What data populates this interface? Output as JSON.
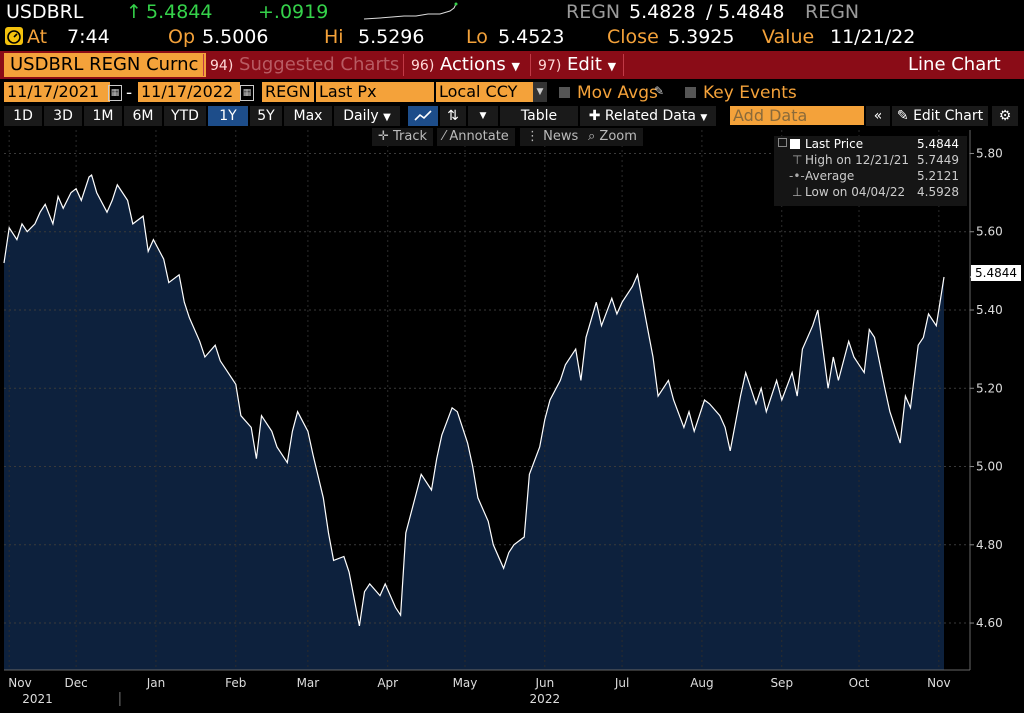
{
  "quote": {
    "ticker": "USDBRL",
    "arrow": "↑",
    "last": "5.4844",
    "change": "+.0919",
    "source_left": "REGN",
    "bid": "5.4828",
    "slash": "/",
    "ask": "5.4848",
    "source_right": "REGN",
    "at_label": "At",
    "at_time": "7:44",
    "open_label": "Op",
    "open": "5.5006",
    "high_label": "Hi",
    "high": "5.5296",
    "low_label": "Lo",
    "low": "5.4523",
    "close_label": "Close",
    "close": "5.3925",
    "value_label": "Value",
    "value_date": "11/21/22"
  },
  "menubar": {
    "security": "USDBRL REGN Curnc",
    "suggested_num": "94)",
    "suggested": "Suggested Charts",
    "actions_num": "96)",
    "actions": "Actions",
    "edit_num": "97)",
    "edit": "Edit",
    "chart_type": "Line Chart"
  },
  "controls": {
    "start_date": "11/17/2021",
    "dash": "-",
    "end_date": "11/17/2022",
    "source": "REGN",
    "field": "Last Px",
    "currency": "Local CCY",
    "mov_avgs": "Mov Avgs",
    "key_events": "Key Events",
    "ranges": [
      "1D",
      "3D",
      "1M",
      "6M",
      "YTD",
      "1Y",
      "5Y",
      "Max"
    ],
    "selected_range": "1Y",
    "frequency": "Daily",
    "table": "Table",
    "related_data": "Related Data",
    "add_data_placeholder": "Add Data",
    "edit_chart": "Edit Chart"
  },
  "tools": {
    "track": "Track",
    "annotate": "Annotate",
    "news": "News",
    "zoom": "Zoom"
  },
  "legend": {
    "last_label": "Last Price",
    "last_value": "5.4844",
    "high_label": "High on 12/21/21",
    "high_value": "5.7449",
    "avg_label": "Average",
    "avg_value": "5.2121",
    "low_label": "Low on 04/04/22",
    "low_value": "4.5928"
  },
  "colors": {
    "accent_orange": "#f4a23a",
    "menu_red": "#8a0c17",
    "up_green": "#35d24a",
    "area_fill": "#0d213d",
    "line": "#ffffff"
  },
  "chart_data": {
    "type": "area",
    "title": "",
    "xlabel": "",
    "ylabel": "",
    "ylim": [
      4.48,
      5.86
    ],
    "y_ticks": [
      "5.80",
      "5.60",
      "5.40",
      "5.20",
      "5.00",
      "4.80",
      "4.60"
    ],
    "y_tick_values": [
      5.8,
      5.6,
      5.4,
      5.2,
      5.0,
      4.8,
      4.6
    ],
    "x_ticks": [
      "Nov",
      "Dec",
      "Jan",
      "Feb",
      "Mar",
      "Apr",
      "May",
      "Jun",
      "Jul",
      "Aug",
      "Sep",
      "Oct",
      "Nov"
    ],
    "x_tick_dates": [
      "2021-11-19",
      "2021-12-15",
      "2022-01-15",
      "2022-02-15",
      "2022-03-15",
      "2022-04-15",
      "2022-05-15",
      "2022-06-15",
      "2022-07-15",
      "2022-08-15",
      "2022-09-15",
      "2022-10-15",
      "2022-11-15"
    ],
    "year_labels": [
      {
        "text": "2021",
        "date": "2021-11-30"
      },
      {
        "text": "2022",
        "date": "2022-06-15"
      }
    ],
    "year_separators": [
      "2022-01-01"
    ],
    "last_value_label": "5.4844",
    "series": [
      {
        "values": [
          [
            "2021-11-17",
            5.52
          ],
          [
            "2021-11-19",
            5.61
          ],
          [
            "2021-11-22",
            5.58
          ],
          [
            "2021-11-24",
            5.62
          ],
          [
            "2021-11-26",
            5.6
          ],
          [
            "2021-11-29",
            5.62
          ],
          [
            "2021-12-01",
            5.65
          ],
          [
            "2021-12-03",
            5.67
          ],
          [
            "2021-12-06",
            5.62
          ],
          [
            "2021-12-08",
            5.69
          ],
          [
            "2021-12-10",
            5.66
          ],
          [
            "2021-12-13",
            5.7
          ],
          [
            "2021-12-15",
            5.71
          ],
          [
            "2021-12-17",
            5.68
          ],
          [
            "2021-12-20",
            5.74
          ],
          [
            "2021-12-21",
            5.7449
          ],
          [
            "2021-12-23",
            5.7
          ],
          [
            "2021-12-27",
            5.65
          ],
          [
            "2021-12-29",
            5.68
          ],
          [
            "2021-12-31",
            5.72
          ],
          [
            "2022-01-04",
            5.68
          ],
          [
            "2022-01-06",
            5.62
          ],
          [
            "2022-01-10",
            5.64
          ],
          [
            "2022-01-12",
            5.55
          ],
          [
            "2022-01-14",
            5.58
          ],
          [
            "2022-01-18",
            5.53
          ],
          [
            "2022-01-20",
            5.47
          ],
          [
            "2022-01-24",
            5.49
          ],
          [
            "2022-01-26",
            5.42
          ],
          [
            "2022-01-28",
            5.38
          ],
          [
            "2022-02-01",
            5.32
          ],
          [
            "2022-02-03",
            5.28
          ],
          [
            "2022-02-07",
            5.31
          ],
          [
            "2022-02-09",
            5.27
          ],
          [
            "2022-02-11",
            5.25
          ],
          [
            "2022-02-15",
            5.21
          ],
          [
            "2022-02-17",
            5.13
          ],
          [
            "2022-02-21",
            5.1
          ],
          [
            "2022-02-23",
            5.02
          ],
          [
            "2022-02-25",
            5.13
          ],
          [
            "2022-03-01",
            5.09
          ],
          [
            "2022-03-03",
            5.05
          ],
          [
            "2022-03-07",
            5.01
          ],
          [
            "2022-03-09",
            5.09
          ],
          [
            "2022-03-11",
            5.14
          ],
          [
            "2022-03-15",
            5.09
          ],
          [
            "2022-03-17",
            5.03
          ],
          [
            "2022-03-21",
            4.92
          ],
          [
            "2022-03-23",
            4.83
          ],
          [
            "2022-03-25",
            4.76
          ],
          [
            "2022-03-29",
            4.77
          ],
          [
            "2022-03-31",
            4.73
          ],
          [
            "2022-04-04",
            4.5928
          ],
          [
            "2022-04-06",
            4.68
          ],
          [
            "2022-04-08",
            4.7
          ],
          [
            "2022-04-12",
            4.67
          ],
          [
            "2022-04-14",
            4.7
          ],
          [
            "2022-04-18",
            4.64
          ],
          [
            "2022-04-20",
            4.62
          ],
          [
            "2022-04-22",
            4.83
          ],
          [
            "2022-04-26",
            4.93
          ],
          [
            "2022-04-28",
            4.98
          ],
          [
            "2022-05-02",
            4.94
          ],
          [
            "2022-05-04",
            5.02
          ],
          [
            "2022-05-06",
            5.08
          ],
          [
            "2022-05-10",
            5.15
          ],
          [
            "2022-05-12",
            5.14
          ],
          [
            "2022-05-16",
            5.06
          ],
          [
            "2022-05-18",
            5.0
          ],
          [
            "2022-05-20",
            4.92
          ],
          [
            "2022-05-24",
            4.86
          ],
          [
            "2022-05-26",
            4.8
          ],
          [
            "2022-05-30",
            4.74
          ],
          [
            "2022-06-01",
            4.78
          ],
          [
            "2022-06-03",
            4.8
          ],
          [
            "2022-06-07",
            4.82
          ],
          [
            "2022-06-09",
            4.98
          ],
          [
            "2022-06-13",
            5.05
          ],
          [
            "2022-06-15",
            5.12
          ],
          [
            "2022-06-17",
            5.17
          ],
          [
            "2022-06-21",
            5.22
          ],
          [
            "2022-06-23",
            5.26
          ],
          [
            "2022-06-27",
            5.3
          ],
          [
            "2022-06-29",
            5.22
          ],
          [
            "2022-07-01",
            5.33
          ],
          [
            "2022-07-05",
            5.42
          ],
          [
            "2022-07-07",
            5.36
          ],
          [
            "2022-07-11",
            5.43
          ],
          [
            "2022-07-13",
            5.39
          ],
          [
            "2022-07-15",
            5.42
          ],
          [
            "2022-07-19",
            5.46
          ],
          [
            "2022-07-21",
            5.49
          ],
          [
            "2022-07-25",
            5.35
          ],
          [
            "2022-07-27",
            5.28
          ],
          [
            "2022-07-29",
            5.18
          ],
          [
            "2022-08-02",
            5.22
          ],
          [
            "2022-08-04",
            5.17
          ],
          [
            "2022-08-08",
            5.1
          ],
          [
            "2022-08-10",
            5.14
          ],
          [
            "2022-08-12",
            5.09
          ],
          [
            "2022-08-16",
            5.17
          ],
          [
            "2022-08-18",
            5.16
          ],
          [
            "2022-08-22",
            5.13
          ],
          [
            "2022-08-24",
            5.1
          ],
          [
            "2022-08-26",
            5.04
          ],
          [
            "2022-08-30",
            5.18
          ],
          [
            "2022-09-01",
            5.24
          ],
          [
            "2022-09-05",
            5.16
          ],
          [
            "2022-09-07",
            5.2
          ],
          [
            "2022-09-09",
            5.14
          ],
          [
            "2022-09-13",
            5.22
          ],
          [
            "2022-09-15",
            5.17
          ],
          [
            "2022-09-19",
            5.24
          ],
          [
            "2022-09-21",
            5.18
          ],
          [
            "2022-09-23",
            5.3
          ],
          [
            "2022-09-27",
            5.36
          ],
          [
            "2022-09-29",
            5.4
          ],
          [
            "2022-10-03",
            5.2
          ],
          [
            "2022-10-05",
            5.28
          ],
          [
            "2022-10-07",
            5.22
          ],
          [
            "2022-10-11",
            5.32
          ],
          [
            "2022-10-13",
            5.28
          ],
          [
            "2022-10-17",
            5.24
          ],
          [
            "2022-10-19",
            5.35
          ],
          [
            "2022-10-21",
            5.33
          ],
          [
            "2022-10-25",
            5.2
          ],
          [
            "2022-10-27",
            5.14
          ],
          [
            "2022-10-31",
            5.06
          ],
          [
            "2022-11-02",
            5.18
          ],
          [
            "2022-11-04",
            5.15
          ],
          [
            "2022-11-07",
            5.31
          ],
          [
            "2022-11-09",
            5.33
          ],
          [
            "2022-11-11",
            5.39
          ],
          [
            "2022-11-14",
            5.36
          ],
          [
            "2022-11-17",
            5.4844
          ]
        ]
      }
    ]
  }
}
